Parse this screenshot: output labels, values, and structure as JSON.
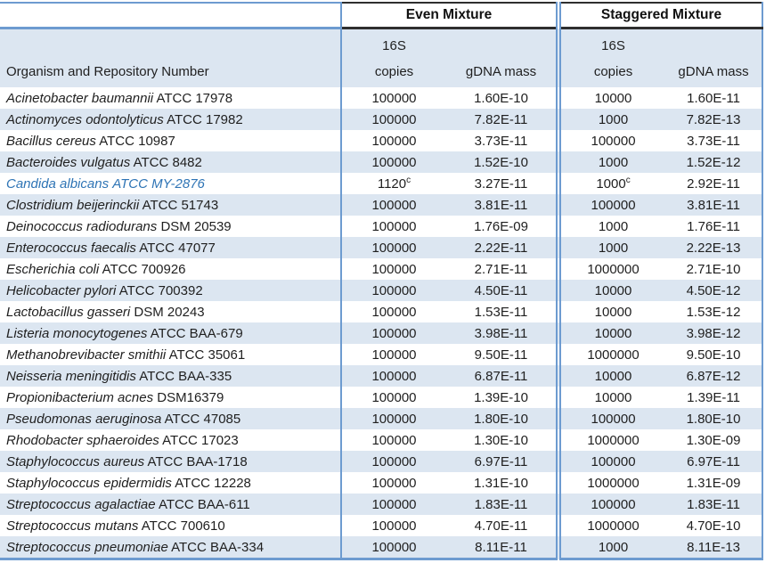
{
  "table": {
    "group_headers": {
      "even": "Even Mixture",
      "staggered": "Staggered Mixture"
    },
    "column_headers": {
      "organism": "Organism and Repository Number",
      "copies_top": "16S",
      "copies_bottom": "copies",
      "gdna_mass": "gDNA mass"
    },
    "colors": {
      "row_shade": "#dce6f1",
      "border_blue": "#6d9bd0",
      "border_dark": "#2e2e2e",
      "highlight_text": "#2e74b5"
    },
    "footnote_marker": "c",
    "rows": [
      {
        "name": "Acinetobacter baumannii",
        "accession": "ATCC 17978",
        "even_copies": "100000",
        "even_mass": "1.60E-10",
        "stag_copies": "10000",
        "stag_mass": "1.60E-11"
      },
      {
        "name": "Actinomyces odontolyticus",
        "accession": "ATCC 17982",
        "even_copies": "100000",
        "even_mass": "7.82E-11",
        "stag_copies": "1000",
        "stag_mass": "7.82E-13"
      },
      {
        "name": "Bacillus cereus",
        "accession": "ATCC 10987",
        "even_copies": "100000",
        "even_mass": "3.73E-11",
        "stag_copies": "100000",
        "stag_mass": "3.73E-11"
      },
      {
        "name": "Bacteroides vulgatus",
        "accession": "ATCC 8482",
        "even_copies": "100000",
        "even_mass": "1.52E-10",
        "stag_copies": "1000",
        "stag_mass": "1.52E-12"
      },
      {
        "name": "Candida albicans",
        "accession": "ATCC MY-2876",
        "even_copies": "1120",
        "even_copies_sup": "c",
        "even_mass": "3.27E-11",
        "stag_copies": "1000",
        "stag_copies_sup": "c",
        "stag_mass": "2.92E-11",
        "highlight": true
      },
      {
        "name": "Clostridium beijerinckii",
        "accession": "ATCC 51743",
        "even_copies": "100000",
        "even_mass": "3.81E-11",
        "stag_copies": "100000",
        "stag_mass": "3.81E-11"
      },
      {
        "name": "Deinococcus radiodurans",
        "accession": "DSM 20539",
        "even_copies": "100000",
        "even_mass": "1.76E-09",
        "stag_copies": "1000",
        "stag_mass": "1.76E-11"
      },
      {
        "name": "Enterococcus faecalis",
        "accession": "ATCC 47077",
        "even_copies": "100000",
        "even_mass": "2.22E-11",
        "stag_copies": "1000",
        "stag_mass": "2.22E-13"
      },
      {
        "name": "Escherichia coli",
        "accession": "ATCC 700926",
        "even_copies": "100000",
        "even_mass": "2.71E-11",
        "stag_copies": "1000000",
        "stag_mass": "2.71E-10"
      },
      {
        "name": "Helicobacter pylori",
        "accession": "ATCC 700392",
        "even_copies": "100000",
        "even_mass": "4.50E-11",
        "stag_copies": "10000",
        "stag_mass": "4.50E-12"
      },
      {
        "name": "Lactobacillus gasseri",
        "accession": "DSM 20243",
        "even_copies": "100000",
        "even_mass": "1.53E-11",
        "stag_copies": "10000",
        "stag_mass": "1.53E-12"
      },
      {
        "name": "Listeria monocytogenes",
        "accession": "ATCC BAA-679",
        "even_copies": "100000",
        "even_mass": "3.98E-11",
        "stag_copies": "10000",
        "stag_mass": "3.98E-12"
      },
      {
        "name": "Methanobrevibacter smithii",
        "accession": "ATCC 35061",
        "even_copies": "100000",
        "even_mass": "9.50E-11",
        "stag_copies": "1000000",
        "stag_mass": "9.50E-10"
      },
      {
        "name": "Neisseria meningitidis",
        "accession": "ATCC BAA-335",
        "even_copies": "100000",
        "even_mass": "6.87E-11",
        "stag_copies": "10000",
        "stag_mass": "6.87E-12"
      },
      {
        "name": "Propionibacterium acnes",
        "accession": "DSM16379",
        "even_copies": "100000",
        "even_mass": "1.39E-10",
        "stag_copies": "10000",
        "stag_mass": "1.39E-11"
      },
      {
        "name": "Pseudomonas aeruginosa",
        "accession": "ATCC 47085",
        "even_copies": "100000",
        "even_mass": "1.80E-10",
        "stag_copies": "100000",
        "stag_mass": "1.80E-10"
      },
      {
        "name": "Rhodobacter sphaeroides",
        "accession": "ATCC 17023",
        "even_copies": "100000",
        "even_mass": "1.30E-10",
        "stag_copies": "1000000",
        "stag_mass": "1.30E-09"
      },
      {
        "name": "Staphylococcus aureus",
        "accession": "ATCC BAA-1718",
        "even_copies": "100000",
        "even_mass": "6.97E-11",
        "stag_copies": "100000",
        "stag_mass": "6.97E-11"
      },
      {
        "name": "Staphylococcus epidermidis",
        "accession": "ATCC 12228",
        "even_copies": "100000",
        "even_mass": "1.31E-10",
        "stag_copies": "1000000",
        "stag_mass": "1.31E-09"
      },
      {
        "name": "Streptococcus agalactiae",
        "accession": "ATCC BAA-611",
        "even_copies": "100000",
        "even_mass": "1.83E-11",
        "stag_copies": "100000",
        "stag_mass": "1.83E-11"
      },
      {
        "name": "Streptococcus mutans",
        "accession": "ATCC 700610",
        "even_copies": "100000",
        "even_mass": "4.70E-11",
        "stag_copies": "1000000",
        "stag_mass": "4.70E-10"
      },
      {
        "name": "Streptococcus pneumoniae",
        "accession": "ATCC BAA-334",
        "even_copies": "100000",
        "even_mass": "8.11E-11",
        "stag_copies": "1000",
        "stag_mass": "8.11E-13"
      }
    ]
  }
}
